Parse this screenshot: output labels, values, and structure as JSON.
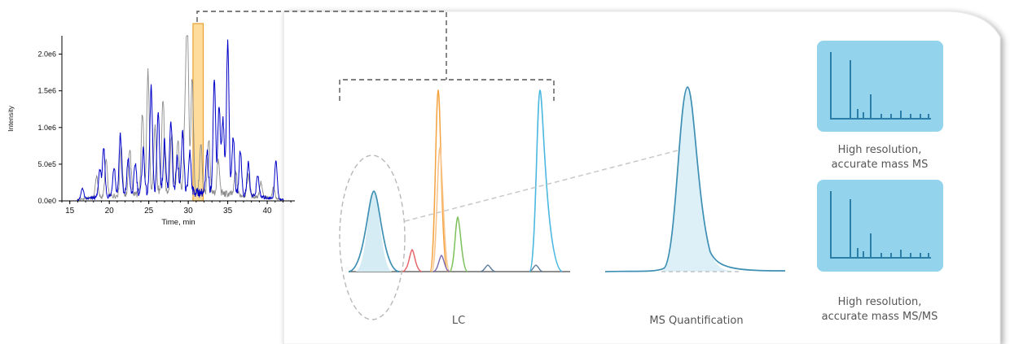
{
  "chart_data": {
    "type": "line",
    "title": "",
    "xlabel": "Time, min",
    "ylabel": "Intensity",
    "xlim": [
      14,
      43.5
    ],
    "ylim": [
      0,
      2250000.0
    ],
    "x_ticks": [
      "15",
      "20",
      "25",
      "30",
      "35",
      "40"
    ],
    "y_ticks": [
      "0.0e0",
      "5.0e5",
      "1.0e6",
      "1.5e6",
      "2.0e6"
    ],
    "grid": false,
    "highlight_range": [
      30.6,
      31.9
    ],
    "series": [
      {
        "color": "#8c8c8c",
        "peaks": [
          [
            18.4,
            300000.0
          ],
          [
            19.6,
            500000.0
          ],
          [
            21.5,
            650000.0
          ],
          [
            22.6,
            630000.0
          ],
          [
            24.2,
            1100000.0
          ],
          [
            24.9,
            1650000.0
          ],
          [
            25.8,
            900000.0
          ],
          [
            26.8,
            1300000.0
          ],
          [
            27.9,
            820000.0
          ],
          [
            28.7,
            730000.0
          ],
          [
            29.6,
            1000000.0
          ],
          [
            29.9,
            2200000.0
          ],
          [
            30.5,
            1550000.0
          ],
          [
            31.6,
            650000.0
          ],
          [
            32.6,
            700000.0
          ],
          [
            33.8,
            450000.0
          ],
          [
            36.0,
            320000.0
          ],
          [
            37.6,
            280000.0
          ],
          [
            39.2,
            200000.0
          ],
          [
            40.8,
            150000.0
          ]
        ]
      },
      {
        "color": "#0000c8",
        "peaks": [
          [
            16.6,
            150000.0
          ],
          [
            18.8,
            380000.0
          ],
          [
            19.3,
            650000.0
          ],
          [
            20.6,
            400000.0
          ],
          [
            21.4,
            830000.0
          ],
          [
            22.4,
            500000.0
          ],
          [
            23.3,
            420000.0
          ],
          [
            24.3,
            600000.0
          ],
          [
            25.3,
            1450000.0
          ],
          [
            26.2,
            1100000.0
          ],
          [
            27.0,
            700000.0
          ],
          [
            27.8,
            950000.0
          ],
          [
            28.6,
            450000.0
          ],
          [
            29.3,
            800000.0
          ],
          [
            30.2,
            550000.0
          ],
          [
            32.4,
            550000.0
          ],
          [
            33.3,
            1550000.0
          ],
          [
            33.9,
            1200000.0
          ],
          [
            34.4,
            1000000.0
          ],
          [
            35.0,
            2080000.0
          ],
          [
            35.7,
            800000.0
          ],
          [
            36.6,
            600000.0
          ],
          [
            37.6,
            450000.0
          ],
          [
            38.8,
            300000.0
          ],
          [
            41.1,
            520000.0
          ]
        ]
      }
    ]
  },
  "diagram": {
    "lc_label": "LC",
    "ms_quant_label": "MS Quantification",
    "ms_label_line1": "High resolution,",
    "ms_label_line2": "accurate mass MS",
    "msms_label_line1": "High resolution,",
    "msms_label_line2": "accurate mass MS/MS",
    "panel_color": "#93d4ec",
    "spectrum_color": "#2a7ea8"
  }
}
